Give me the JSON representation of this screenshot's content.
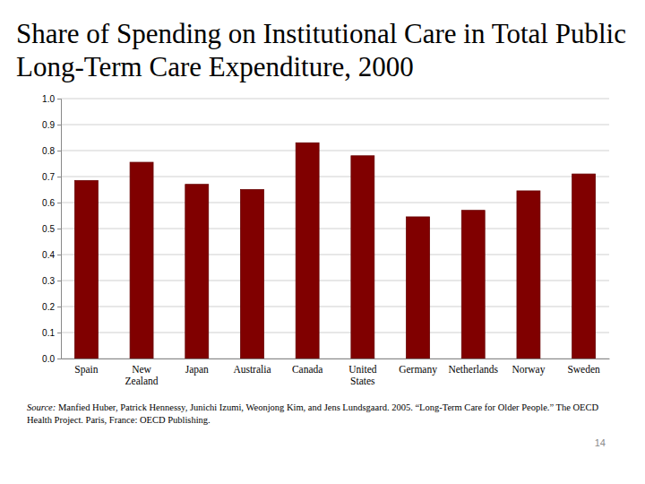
{
  "chart_data": {
    "type": "bar",
    "title": "Share of Spending on Institutional Care in Total Public Long-Term Care Expenditure, 2000",
    "categories": [
      "Spain",
      "New Zealand",
      "Japan",
      "Australia",
      "Canada",
      "United States",
      "Germany",
      "Netherlands",
      "Norway",
      "Sweden"
    ],
    "values": [
      0.685,
      0.755,
      0.67,
      0.65,
      0.83,
      0.78,
      0.545,
      0.57,
      0.645,
      0.71
    ],
    "color": "#800000",
    "ylim": [
      0,
      1
    ],
    "yticks": [
      {
        "value": 0,
        "label": "0.0"
      },
      0.1,
      0.2,
      0.3,
      0.4,
      0.5,
      0.6,
      0.7,
      0.8,
      0.9,
      {
        "value": 1,
        "label": "1.0"
      }
    ],
    "grid": true,
    "source_label": "Source:",
    "source_lines": [
      "Manfied Huber, Patrick Hennessy, Junichi Izumi, Weonjong Kim, and Jens Lundsgaard. 2005. “Long-Term Care for Older People.” The OECD",
      "Health Project. Paris, France: OECD Publishing."
    ],
    "page_number": "14"
  }
}
